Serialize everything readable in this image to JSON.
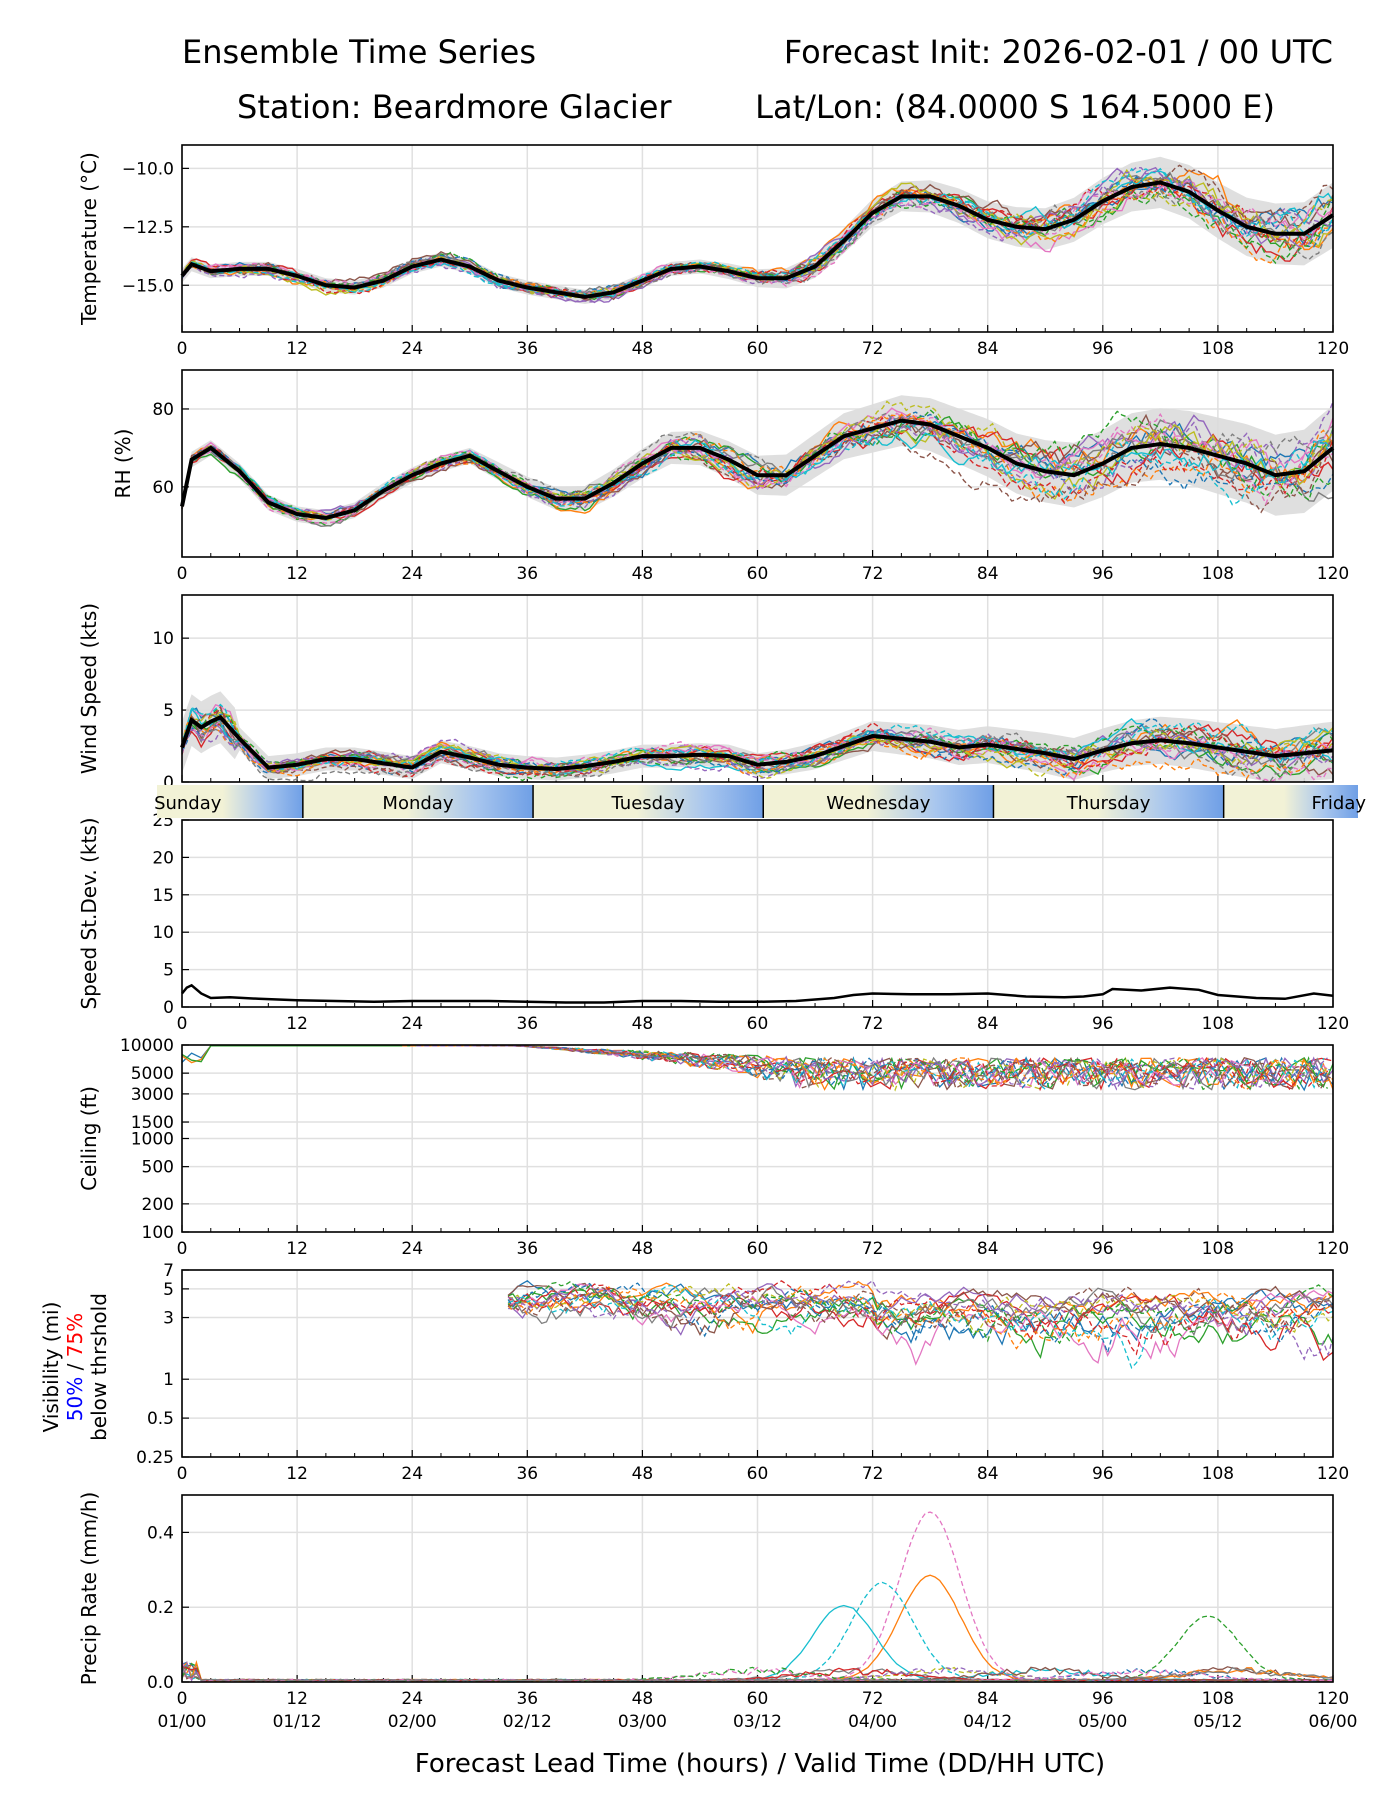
{
  "header": {
    "title_left": "Ensemble Time Series",
    "title_right": "Forecast Init: 2026-02-01 / 00 UTC",
    "station": "Station: Beardmore Glacier",
    "latlon": "Lat/Lon: (84.0000 S 164.5000 E)"
  },
  "xaxis": {
    "label": "Forecast Lead Time (hours) / Valid Time (DD/HH UTC)",
    "ticks": [
      0,
      12,
      24,
      36,
      48,
      60,
      72,
      84,
      96,
      108,
      120
    ],
    "valid_labels": [
      "01/00",
      "01/12",
      "02/00",
      "02/12",
      "03/00",
      "03/12",
      "04/00",
      "04/12",
      "05/00",
      "05/12",
      "06/00"
    ]
  },
  "day_strip": [
    "Sunday",
    "Monday",
    "Tuesday",
    "Wednesday",
    "Thursday",
    "Friday"
  ],
  "visibility_label": {
    "line1": "Visibility (mi)",
    "pct50": "50%",
    "sep": " / ",
    "pct75": "75%",
    "line3": "below thrshold"
  },
  "colors": {
    "members": [
      "#1f77b4",
      "#ff7f0e",
      "#2ca02c",
      "#d62728",
      "#9467bd",
      "#8c564b",
      "#e377c2",
      "#7f7f7f",
      "#bcbd22",
      "#17becf"
    ],
    "mean": "#000000",
    "spread": "#d9d9d9",
    "pct50": "#0000ff",
    "pct75": "#ff0000"
  },
  "chart_data": [
    {
      "type": "line",
      "id": "temperature",
      "ylabel": "Temperature (°C)",
      "ylim": [
        -17,
        -9
      ],
      "yticks": [
        -10.0,
        -12.5,
        -15.0
      ],
      "ytick_labels": [
        "−10.0",
        "−12.5",
        "−15.0"
      ],
      "ensemble_mean": {
        "x": [
          0,
          1,
          3,
          6,
          9,
          12,
          15,
          18,
          21,
          24,
          27,
          30,
          33,
          36,
          39,
          42,
          45,
          48,
          51,
          54,
          57,
          60,
          63,
          66,
          69,
          72,
          75,
          78,
          81,
          84,
          87,
          90,
          93,
          96,
          99,
          102,
          105,
          108,
          111,
          114,
          117,
          120
        ],
        "y": [
          -14.6,
          -14.1,
          -14.4,
          -14.3,
          -14.3,
          -14.6,
          -15.0,
          -15.1,
          -14.8,
          -14.2,
          -13.9,
          -14.2,
          -14.8,
          -15.1,
          -15.3,
          -15.5,
          -15.3,
          -14.8,
          -14.3,
          -14.2,
          -14.4,
          -14.7,
          -14.7,
          -14.2,
          -13.1,
          -11.9,
          -11.2,
          -11.2,
          -11.6,
          -12.2,
          -12.5,
          -12.6,
          -12.2,
          -11.4,
          -10.8,
          -10.6,
          -11.0,
          -11.8,
          -12.5,
          -12.8,
          -12.8,
          -12.0
        ]
      }
    },
    {
      "type": "line",
      "id": "rh",
      "ylabel": "RH (%)",
      "ylim": [
        42,
        90
      ],
      "yticks": [
        80,
        60
      ],
      "ytick_labels": [
        "80",
        "60"
      ],
      "ensemble_mean": {
        "x": [
          0,
          1,
          3,
          6,
          9,
          12,
          15,
          18,
          21,
          24,
          27,
          30,
          33,
          36,
          39,
          42,
          45,
          48,
          51,
          54,
          57,
          60,
          63,
          66,
          69,
          72,
          75,
          78,
          81,
          84,
          87,
          90,
          93,
          96,
          99,
          102,
          105,
          108,
          111,
          114,
          117,
          120
        ],
        "y": [
          55,
          67,
          70,
          64,
          56,
          53,
          52,
          54,
          59,
          63,
          66,
          68,
          64,
          60,
          57,
          57,
          61,
          66,
          70,
          70,
          67,
          63,
          63,
          68,
          73,
          75,
          77,
          76,
          73,
          70,
          66,
          64,
          63,
          66,
          70,
          71,
          70,
          68,
          66,
          63,
          64,
          70
        ]
      }
    },
    {
      "type": "line",
      "id": "wind_speed",
      "ylabel": "Wind Speed (kts)",
      "ylim": [
        0,
        13
      ],
      "yticks": [
        10,
        5,
        0
      ],
      "ytick_labels": [
        "10",
        "5",
        "0"
      ],
      "ensemble_mean": {
        "x": [
          0,
          1,
          2,
          3,
          4,
          6,
          9,
          12,
          15,
          18,
          21,
          24,
          27,
          30,
          33,
          36,
          39,
          42,
          45,
          48,
          51,
          54,
          57,
          60,
          63,
          66,
          69,
          72,
          75,
          78,
          81,
          84,
          87,
          90,
          93,
          96,
          99,
          102,
          105,
          108,
          111,
          114,
          117,
          120
        ],
        "y": [
          2.4,
          4.3,
          3.8,
          4.2,
          4.5,
          3.0,
          1.0,
          1.2,
          1.6,
          1.6,
          1.3,
          1.0,
          2.1,
          1.7,
          1.2,
          1.0,
          0.9,
          1.1,
          1.4,
          1.8,
          1.8,
          1.9,
          1.8,
          1.2,
          1.4,
          1.8,
          2.5,
          3.2,
          3.0,
          2.8,
          2.4,
          2.6,
          2.3,
          2.0,
          1.6,
          2.2,
          2.7,
          2.9,
          2.7,
          2.4,
          2.1,
          1.8,
          2.0,
          2.2
        ]
      }
    },
    {
      "type": "line",
      "id": "speed_stdev",
      "ylabel": "Speed St.Dev. (kts)",
      "ylim": [
        0,
        25
      ],
      "yticks": [
        25,
        20,
        15,
        10,
        5,
        0
      ],
      "ytick_labels": [
        "25",
        "20",
        "15",
        "10",
        "5",
        "0"
      ],
      "series": [
        {
          "name": "stdev",
          "x": [
            0,
            0.5,
            1,
            2,
            3,
            5,
            8,
            12,
            16,
            20,
            24,
            28,
            32,
            36,
            40,
            44,
            48,
            52,
            56,
            60,
            64,
            68,
            70,
            72,
            76,
            80,
            84,
            88,
            92,
            94,
            96,
            97,
            100,
            103,
            106,
            108,
            112,
            115,
            118,
            120
          ],
          "y": [
            1.8,
            2.6,
            2.9,
            1.8,
            1.2,
            1.3,
            1.1,
            0.9,
            0.8,
            0.7,
            0.8,
            0.8,
            0.8,
            0.7,
            0.6,
            0.6,
            0.8,
            0.8,
            0.7,
            0.7,
            0.8,
            1.2,
            1.6,
            1.8,
            1.7,
            1.7,
            1.8,
            1.4,
            1.3,
            1.4,
            1.7,
            2.4,
            2.2,
            2.6,
            2.3,
            1.6,
            1.2,
            1.1,
            1.8,
            1.5
          ]
        }
      ]
    },
    {
      "type": "line",
      "id": "ceiling",
      "ylabel": "Ceiling (ft)",
      "scale": "log",
      "ylim": [
        100,
        10000
      ],
      "yticks": [
        10000,
        5000,
        3000,
        1500,
        1000,
        500,
        200,
        100
      ],
      "ytick_labels": [
        "10000",
        "5000",
        "3000",
        "1500",
        "1000",
        "500",
        "200",
        "100"
      ]
    },
    {
      "type": "line",
      "id": "visibility",
      "scale": "log",
      "ylim": [
        0.25,
        7
      ],
      "yticks": [
        7,
        5,
        3,
        1,
        0.5,
        0.25
      ],
      "ytick_labels": [
        "7",
        "5",
        "3",
        "1",
        "0.5",
        "0.25"
      ]
    },
    {
      "type": "line",
      "id": "precip_rate",
      "ylabel": "Precip Rate (mm/h)",
      "ylim": [
        0,
        0.5
      ],
      "yticks": [
        0.4,
        0.2,
        0.0
      ],
      "ytick_labels": [
        "0.4",
        "0.2",
        "0.0"
      ],
      "member_peaks": [
        {
          "member": 6,
          "peak_hour": 78,
          "peak_value": 0.45
        },
        {
          "member": 1,
          "peak_hour": 78,
          "peak_value": 0.28
        },
        {
          "member": 9,
          "peak_hour": 73,
          "peak_value": 0.26
        },
        {
          "member": 9,
          "peak_hour": 69,
          "peak_value": 0.2
        },
        {
          "member": 2,
          "peak_hour": 107,
          "peak_value": 0.17
        }
      ]
    }
  ]
}
